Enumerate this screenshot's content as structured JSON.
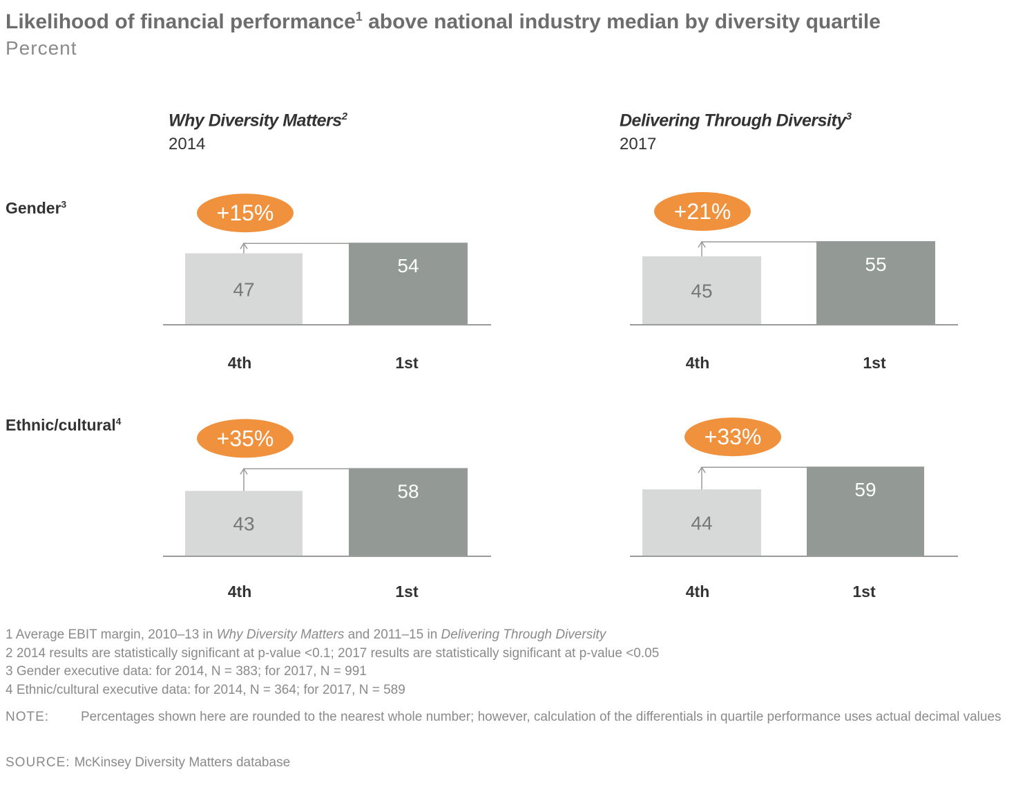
{
  "title": {
    "text_before": "Likelihood of financial performance",
    "sup": "1",
    "text_after": " above national industry median by diversity quartile"
  },
  "subtitle": "Percent",
  "panels": [
    {
      "title": "Why Diversity Matters",
      "sup": "2",
      "year": "2014"
    },
    {
      "title": "Delivering Through Diversity",
      "sup": "3",
      "year": "2017"
    }
  ],
  "rows": [
    {
      "label": "Gender",
      "sup": "3"
    },
    {
      "label": "Ethnic/cultural",
      "sup": "4"
    }
  ],
  "colors": {
    "bar_4th": "#d6d9d7",
    "bar_1st": "#939a95",
    "badge": "#f0913d",
    "axis": "#9a9a9a",
    "label_4th_text": "#777777",
    "label_1st_text": "#ffffff"
  },
  "chart_data": [
    {
      "type": "bar",
      "row": "Gender",
      "panel": "Why Diversity Matters",
      "categories": [
        "4th",
        "1st"
      ],
      "values": [
        47,
        54
      ],
      "differential": "+15%"
    },
    {
      "type": "bar",
      "row": "Gender",
      "panel": "Delivering Through Diversity",
      "categories": [
        "4th",
        "1st"
      ],
      "values": [
        45,
        55
      ],
      "differential": "+21%"
    },
    {
      "type": "bar",
      "row": "Ethnic/cultural",
      "panel": "Why Diversity Matters",
      "categories": [
        "4th",
        "1st"
      ],
      "values": [
        43,
        58
      ],
      "differential": "+35%"
    },
    {
      "type": "bar",
      "row": "Ethnic/cultural",
      "panel": "Delivering Through Diversity",
      "categories": [
        "4th",
        "1st"
      ],
      "values": [
        44,
        59
      ],
      "differential": "+33%"
    }
  ],
  "footnotes": {
    "f1": {
      "a": "1 Average EBIT margin, 2010–13 in ",
      "b": "Why Diversity Matters",
      "c": " and 2011–15 in ",
      "d": "Delivering Through Diversity"
    },
    "f2": "2 2014 results are statistically significant at p-value <0.1; 2017 results are statistically significant at p-value <0.05",
    "f3": "3 Gender executive data: for 2014, N = 383; for 2017, N = 991",
    "f4": "4 Ethnic/cultural executive data: for 2014, N = 364; for 2017, N = 589"
  },
  "note": {
    "label": "NOTE:",
    "text": "Percentages shown here are rounded to the nearest whole number; however, calculation of the differentials in quartile performance uses actual decimal values"
  },
  "source": {
    "label": "SOURCE:",
    "text": "McKinsey Diversity Matters database"
  }
}
